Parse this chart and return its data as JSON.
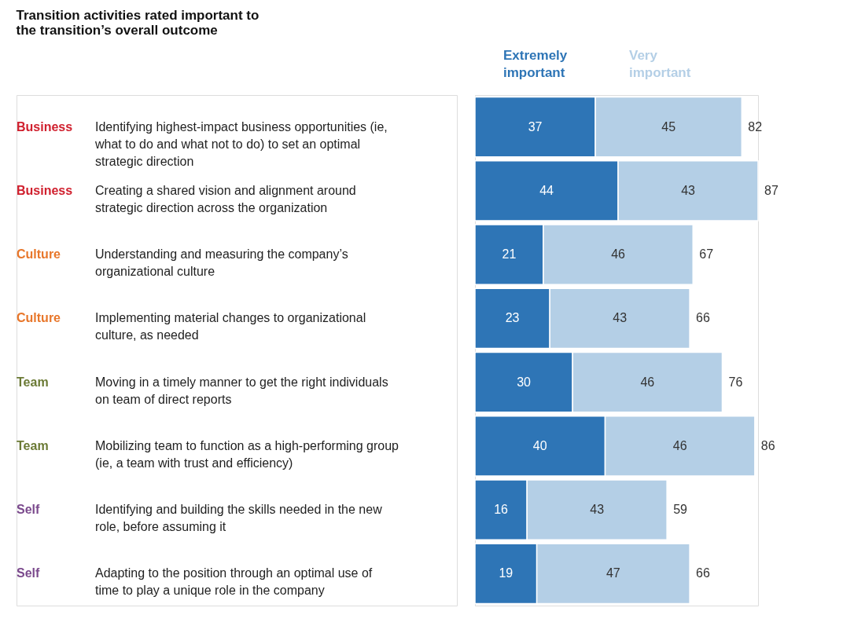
{
  "chart_data": {
    "type": "bar",
    "orientation": "horizontal",
    "stacked": true,
    "data_labels": true,
    "legend": "top",
    "title": [
      "Transition activities rated important to",
      "the transition’s overall outcome"
    ],
    "categories": [
      "Identifying highest-impact business opportunities (ie, what to do and what not to do) to set an optimal strategic direction",
      "Creating a shared vision and alignment around strategic direction across the organization",
      "Understanding and measuring the company’s organizational culture",
      "Implementing material changes to organizational culture, as needed",
      "Moving in a timely manner to get the right individuals on team of direct reports",
      "Mobilizing team to function as a high-performing group (ie, a team with trust and efficiency)",
      "Identifying and building the skills needed in the new role, before assuming it",
      "Adapting to the position through an optimal use of time to play a unique role in the company"
    ],
    "series": [
      {
        "name": "Extremely important",
        "color": "#2e75b6",
        "values": [
          37,
          44,
          21,
          23,
          30,
          40,
          16,
          19
        ]
      },
      {
        "name": "Very important",
        "color": "#b4cfe6",
        "values": [
          45,
          43,
          46,
          43,
          46,
          46,
          43,
          47
        ]
      }
    ],
    "totals": [
      "82",
      "87",
      "67",
      "66",
      "76",
      "86",
      "59",
      "66"
    ],
    "annotations": [
      "Business",
      "Business",
      "Culture",
      "Culture",
      "Team",
      "Team",
      "Self",
      "Self"
    ]
  }
}
